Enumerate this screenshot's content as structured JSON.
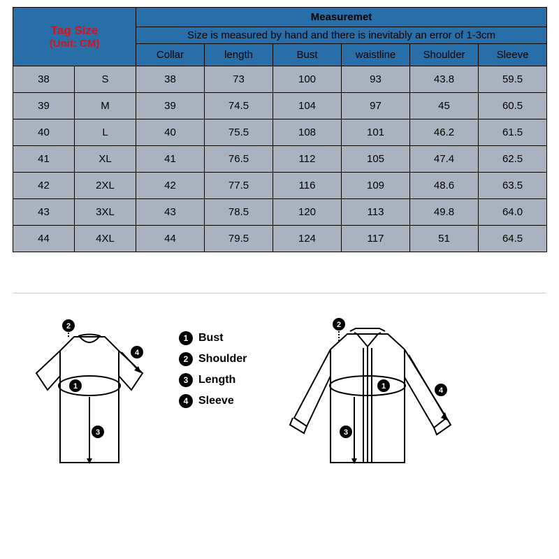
{
  "colors": {
    "header_blue": "#286ea8",
    "body_grey": "#a9b3bf",
    "border": "#000000",
    "tag_size_text": "#d8121a",
    "text": "#000000",
    "divider": "#cccccc",
    "badge_bg": "#000000",
    "badge_fg": "#ffffff"
  },
  "table": {
    "type": "table",
    "tag_size_title": "Tag Size",
    "tag_size_unit": "(Unit: CM)",
    "measurement_title": "Measuremet",
    "measurement_note": "Size is measured by hand and there is inevitably an error of 1-3cm",
    "columns": [
      "Collar",
      "length",
      "Bust",
      "waistline",
      "Shoulder",
      "Sleeve"
    ],
    "rows": [
      {
        "tag": "38",
        "size": "S",
        "values": [
          "38",
          "73",
          "100",
          "93",
          "43.8",
          "59.5"
        ]
      },
      {
        "tag": "39",
        "size": "M",
        "values": [
          "39",
          "74.5",
          "104",
          "97",
          "45",
          "60.5"
        ]
      },
      {
        "tag": "40",
        "size": "L",
        "values": [
          "40",
          "75.5",
          "108",
          "101",
          "46.2",
          "61.5"
        ]
      },
      {
        "tag": "41",
        "size": "XL",
        "values": [
          "41",
          "76.5",
          "112",
          "105",
          "47.4",
          "62.5"
        ]
      },
      {
        "tag": "42",
        "size": "2XL",
        "values": [
          "42",
          "77.5",
          "116",
          "109",
          "48.6",
          "63.5"
        ]
      },
      {
        "tag": "43",
        "size": "3XL",
        "values": [
          "43",
          "78.5",
          "120",
          "113",
          "49.8",
          "64.0"
        ]
      },
      {
        "tag": "44",
        "size": "4XL",
        "values": [
          "44",
          "79.5",
          "124",
          "117",
          "51",
          "64.5"
        ]
      }
    ]
  },
  "legend": {
    "items": [
      {
        "num": "1",
        "label": "Bust"
      },
      {
        "num": "2",
        "label": "Shoulder"
      },
      {
        "num": "3",
        "label": "Length"
      },
      {
        "num": "4",
        "label": "Sleeve"
      }
    ]
  }
}
